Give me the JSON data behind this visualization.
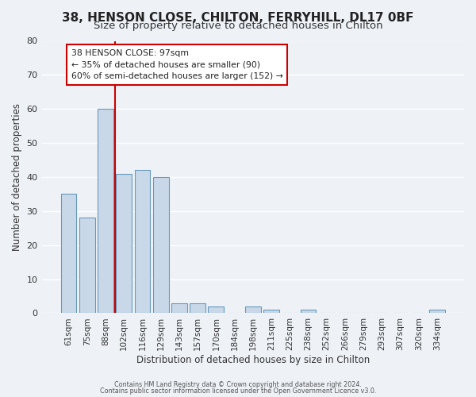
{
  "title": "38, HENSON CLOSE, CHILTON, FERRYHILL, DL17 0BF",
  "subtitle": "Size of property relative to detached houses in Chilton",
  "xlabel": "Distribution of detached houses by size in Chilton",
  "ylabel": "Number of detached properties",
  "bar_labels": [
    "61sqm",
    "75sqm",
    "88sqm",
    "102sqm",
    "116sqm",
    "129sqm",
    "143sqm",
    "157sqm",
    "170sqm",
    "184sqm",
    "198sqm",
    "211sqm",
    "225sqm",
    "238sqm",
    "252sqm",
    "266sqm",
    "279sqm",
    "293sqm",
    "307sqm",
    "320sqm",
    "334sqm"
  ],
  "bar_values": [
    35,
    28,
    60,
    41,
    42,
    40,
    3,
    3,
    2,
    0,
    2,
    1,
    0,
    1,
    0,
    0,
    0,
    0,
    0,
    0,
    1
  ],
  "bar_color": "#c8d8e8",
  "bar_edge_color": "#6699bb",
  "vline_x": 2.5,
  "vline_color": "#cc0000",
  "ylim": [
    0,
    80
  ],
  "yticks": [
    0,
    10,
    20,
    30,
    40,
    50,
    60,
    70,
    80
  ],
  "annotation_title": "38 HENSON CLOSE: 97sqm",
  "annotation_line1": "← 35% of detached houses are smaller (90)",
  "annotation_line2": "60% of semi-detached houses are larger (152) →",
  "footer_line1": "Contains HM Land Registry data © Crown copyright and database right 2024.",
  "footer_line2": "Contains public sector information licensed under the Open Government Licence v3.0.",
  "background_color": "#eef2f7",
  "plot_background": "#eef2f7",
  "grid_color": "#ffffff",
  "title_fontsize": 11,
  "subtitle_fontsize": 9.5
}
